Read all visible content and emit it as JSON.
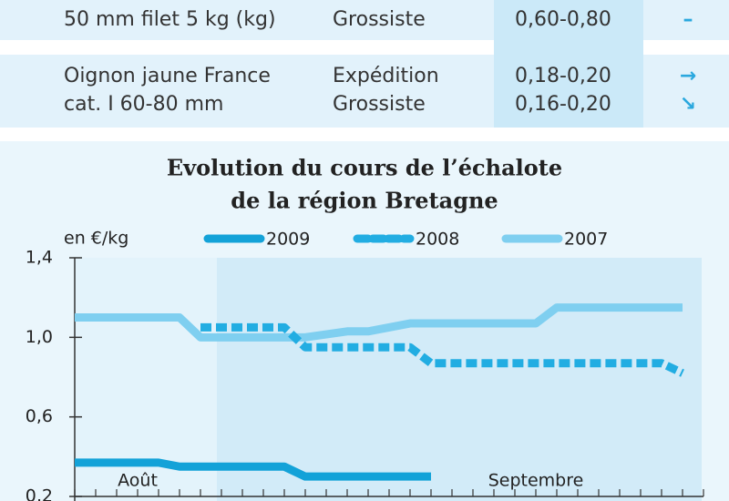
{
  "table": {
    "rows": [
      {
        "product": [
          "50 mm filet 5 kg (kg)"
        ],
        "stage": [
          "Grossiste"
        ],
        "price": [
          "0,60-0,80"
        ],
        "trend": [
          "–"
        ]
      },
      {
        "product": [
          "Oignon jaune France",
          "cat. I 60-80 mm"
        ],
        "stage": [
          "Expédition",
          "Grossiste"
        ],
        "price": [
          "0,18-0,20",
          "0,16-0,20"
        ],
        "trend": [
          "→",
          "↘"
        ]
      }
    ]
  },
  "chart_data": {
    "type": "line",
    "title": [
      "Evolution du cours de l’échalote",
      "de la région Bretagne"
    ],
    "y_label": "en €/kg",
    "annotations": [
      {
        "text": "Août",
        "x": 3
      },
      {
        "text": "Septembre",
        "x": 22
      }
    ],
    "xlim": [
      0,
      30
    ],
    "xticks": [
      0,
      1,
      2,
      3,
      4,
      5,
      6,
      7,
      8,
      9,
      10,
      11,
      12,
      13,
      14,
      15,
      16,
      17,
      18,
      19,
      20,
      21,
      22,
      23,
      24,
      25,
      26,
      27,
      28,
      29,
      30
    ],
    "ylim": [
      0.2,
      1.4
    ],
    "yticks": [
      {
        "value": 0.2,
        "label": "0,2"
      },
      {
        "value": 0.6,
        "label": "0,6"
      },
      {
        "value": 1.0,
        "label": "1,0"
      },
      {
        "value": 1.4,
        "label": "1,4"
      }
    ],
    "series": [
      {
        "name": "2009",
        "color": "#13a2d8",
        "style": "solid",
        "x": [
          0,
          4,
          5,
          10,
          11,
          17
        ],
        "values": [
          0.37,
          0.37,
          0.35,
          0.35,
          0.3,
          0.3
        ]
      },
      {
        "name": "2008",
        "color": "#22ade2",
        "style": "dashed",
        "x": [
          6,
          10,
          11,
          16,
          17,
          28,
          29
        ],
        "values": [
          1.05,
          1.05,
          0.95,
          0.95,
          0.87,
          0.87,
          0.82
        ]
      },
      {
        "name": "2007",
        "color": "#7fcff0",
        "style": "solid",
        "x": [
          0,
          5,
          6,
          11,
          13,
          14,
          16,
          22,
          23,
          29
        ],
        "values": [
          1.1,
          1.1,
          1.0,
          1.0,
          1.03,
          1.03,
          1.07,
          1.07,
          1.15,
          1.15
        ]
      }
    ]
  }
}
